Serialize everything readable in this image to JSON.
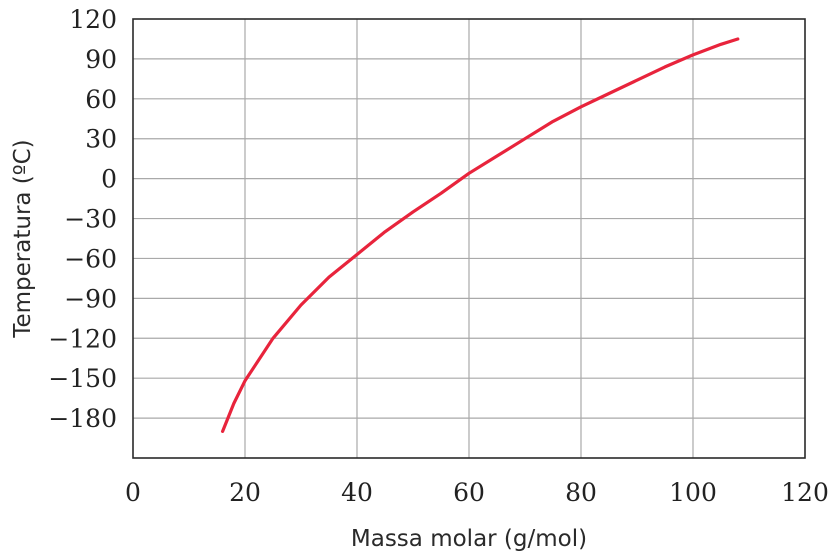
{
  "chart_data": {
    "type": "line",
    "xlabel": "Massa molar (g/mol)",
    "ylabel": "Temperatura (ºC)",
    "xlim": [
      0,
      120
    ],
    "ylim": [
      -210,
      120
    ],
    "grid": true,
    "x_ticks": [
      0,
      20,
      40,
      60,
      80,
      100,
      120
    ],
    "y_ticks": [
      120,
      90,
      60,
      30,
      0,
      -30,
      -60,
      -90,
      -120,
      -150,
      -180
    ],
    "x_tick_labels": [
      "0",
      "20",
      "40",
      "60",
      "80",
      "100",
      "120"
    ],
    "y_tick_labels": [
      "120",
      "90",
      "60",
      "30",
      "0",
      "−30",
      "−60",
      "−90",
      "−120",
      "−150",
      "−180"
    ],
    "series": [
      {
        "color": "#e8243c",
        "x": [
          16,
          18,
          20,
          25,
          30,
          35,
          40,
          45,
          50,
          55,
          60,
          65,
          70,
          75,
          80,
          85,
          90,
          95,
          100,
          105,
          108
        ],
        "y": [
          -190,
          -169,
          -152,
          -120,
          -95,
          -74,
          -57,
          -40,
          -25,
          -11,
          4,
          17,
          30,
          43,
          54,
          64,
          74,
          84,
          93,
          101,
          105
        ]
      }
    ]
  }
}
